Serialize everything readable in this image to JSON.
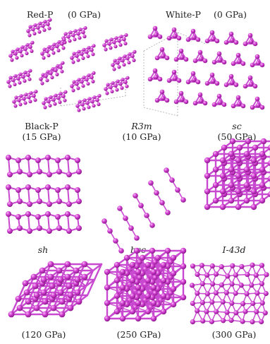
{
  "colors": {
    "atom": "#d23fd2",
    "atom_highlight": "#f6bff6",
    "atom_shadow": "#8a188a",
    "bond": "#c84ad0",
    "cell_edge": "#a9a9a9"
  },
  "panels": [
    {
      "id": "red-p",
      "name": "Red-P",
      "pressure": "(0 GPa)",
      "italic": false
    },
    {
      "id": "white-p",
      "name": "White-P",
      "pressure": "(0 GPa)",
      "italic": false
    },
    {
      "id": "black-p",
      "name": "Black-P",
      "pressure": "(15 GPa)",
      "italic": false
    },
    {
      "id": "r3m",
      "name": "R3m",
      "pressure": "(10 GPa)",
      "italic": true
    },
    {
      "id": "sc",
      "name": "sc",
      "pressure": "(50 GPa)",
      "italic": true
    },
    {
      "id": "sh",
      "name": "sh",
      "pressure": "(120 GPa)",
      "italic": true
    },
    {
      "id": "bcc",
      "name": "bcc",
      "pressure": "(250 GPa)",
      "italic": true
    },
    {
      "id": "i43d",
      "name": "I-43d",
      "pressure": "(300 GPa)",
      "italic": true
    }
  ]
}
